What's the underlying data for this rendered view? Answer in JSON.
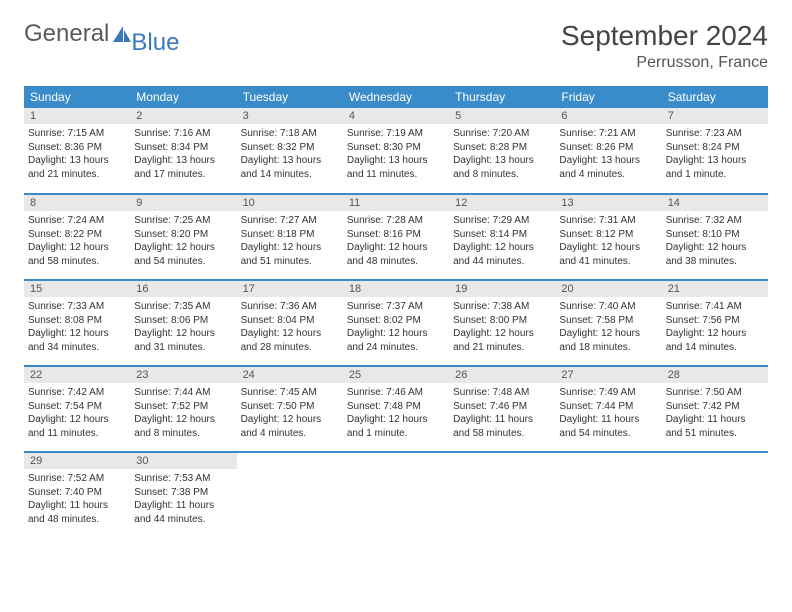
{
  "brand": {
    "part1": "General",
    "part2": "Blue"
  },
  "title": "September 2024",
  "location": "Perrusson, France",
  "dayHeaders": [
    "Sunday",
    "Monday",
    "Tuesday",
    "Wednesday",
    "Thursday",
    "Friday",
    "Saturday"
  ],
  "colors": {
    "headerBg": "#3a8bc9",
    "headerText": "#ffffff",
    "dayNumBg": "#e8e8e8",
    "border": "#3a8bc9",
    "brandBlue": "#3a7ab8",
    "brandGray": "#5a5a5a"
  },
  "weeks": [
    [
      {
        "n": "1",
        "sr": "7:15 AM",
        "ss": "8:36 PM",
        "dl": "13 hours and 21 minutes."
      },
      {
        "n": "2",
        "sr": "7:16 AM",
        "ss": "8:34 PM",
        "dl": "13 hours and 17 minutes."
      },
      {
        "n": "3",
        "sr": "7:18 AM",
        "ss": "8:32 PM",
        "dl": "13 hours and 14 minutes."
      },
      {
        "n": "4",
        "sr": "7:19 AM",
        "ss": "8:30 PM",
        "dl": "13 hours and 11 minutes."
      },
      {
        "n": "5",
        "sr": "7:20 AM",
        "ss": "8:28 PM",
        "dl": "13 hours and 8 minutes."
      },
      {
        "n": "6",
        "sr": "7:21 AM",
        "ss": "8:26 PM",
        "dl": "13 hours and 4 minutes."
      },
      {
        "n": "7",
        "sr": "7:23 AM",
        "ss": "8:24 PM",
        "dl": "13 hours and 1 minute."
      }
    ],
    [
      {
        "n": "8",
        "sr": "7:24 AM",
        "ss": "8:22 PM",
        "dl": "12 hours and 58 minutes."
      },
      {
        "n": "9",
        "sr": "7:25 AM",
        "ss": "8:20 PM",
        "dl": "12 hours and 54 minutes."
      },
      {
        "n": "10",
        "sr": "7:27 AM",
        "ss": "8:18 PM",
        "dl": "12 hours and 51 minutes."
      },
      {
        "n": "11",
        "sr": "7:28 AM",
        "ss": "8:16 PM",
        "dl": "12 hours and 48 minutes."
      },
      {
        "n": "12",
        "sr": "7:29 AM",
        "ss": "8:14 PM",
        "dl": "12 hours and 44 minutes."
      },
      {
        "n": "13",
        "sr": "7:31 AM",
        "ss": "8:12 PM",
        "dl": "12 hours and 41 minutes."
      },
      {
        "n": "14",
        "sr": "7:32 AM",
        "ss": "8:10 PM",
        "dl": "12 hours and 38 minutes."
      }
    ],
    [
      {
        "n": "15",
        "sr": "7:33 AM",
        "ss": "8:08 PM",
        "dl": "12 hours and 34 minutes."
      },
      {
        "n": "16",
        "sr": "7:35 AM",
        "ss": "8:06 PM",
        "dl": "12 hours and 31 minutes."
      },
      {
        "n": "17",
        "sr": "7:36 AM",
        "ss": "8:04 PM",
        "dl": "12 hours and 28 minutes."
      },
      {
        "n": "18",
        "sr": "7:37 AM",
        "ss": "8:02 PM",
        "dl": "12 hours and 24 minutes."
      },
      {
        "n": "19",
        "sr": "7:38 AM",
        "ss": "8:00 PM",
        "dl": "12 hours and 21 minutes."
      },
      {
        "n": "20",
        "sr": "7:40 AM",
        "ss": "7:58 PM",
        "dl": "12 hours and 18 minutes."
      },
      {
        "n": "21",
        "sr": "7:41 AM",
        "ss": "7:56 PM",
        "dl": "12 hours and 14 minutes."
      }
    ],
    [
      {
        "n": "22",
        "sr": "7:42 AM",
        "ss": "7:54 PM",
        "dl": "12 hours and 11 minutes."
      },
      {
        "n": "23",
        "sr": "7:44 AM",
        "ss": "7:52 PM",
        "dl": "12 hours and 8 minutes."
      },
      {
        "n": "24",
        "sr": "7:45 AM",
        "ss": "7:50 PM",
        "dl": "12 hours and 4 minutes."
      },
      {
        "n": "25",
        "sr": "7:46 AM",
        "ss": "7:48 PM",
        "dl": "12 hours and 1 minute."
      },
      {
        "n": "26",
        "sr": "7:48 AM",
        "ss": "7:46 PM",
        "dl": "11 hours and 58 minutes."
      },
      {
        "n": "27",
        "sr": "7:49 AM",
        "ss": "7:44 PM",
        "dl": "11 hours and 54 minutes."
      },
      {
        "n": "28",
        "sr": "7:50 AM",
        "ss": "7:42 PM",
        "dl": "11 hours and 51 minutes."
      }
    ],
    [
      {
        "n": "29",
        "sr": "7:52 AM",
        "ss": "7:40 PM",
        "dl": "11 hours and 48 minutes."
      },
      {
        "n": "30",
        "sr": "7:53 AM",
        "ss": "7:38 PM",
        "dl": "11 hours and 44 minutes."
      },
      {
        "empty": true
      },
      {
        "empty": true
      },
      {
        "empty": true
      },
      {
        "empty": true
      },
      {
        "empty": true
      }
    ]
  ],
  "labels": {
    "sunrise": "Sunrise:",
    "sunset": "Sunset:",
    "daylight": "Daylight:"
  }
}
